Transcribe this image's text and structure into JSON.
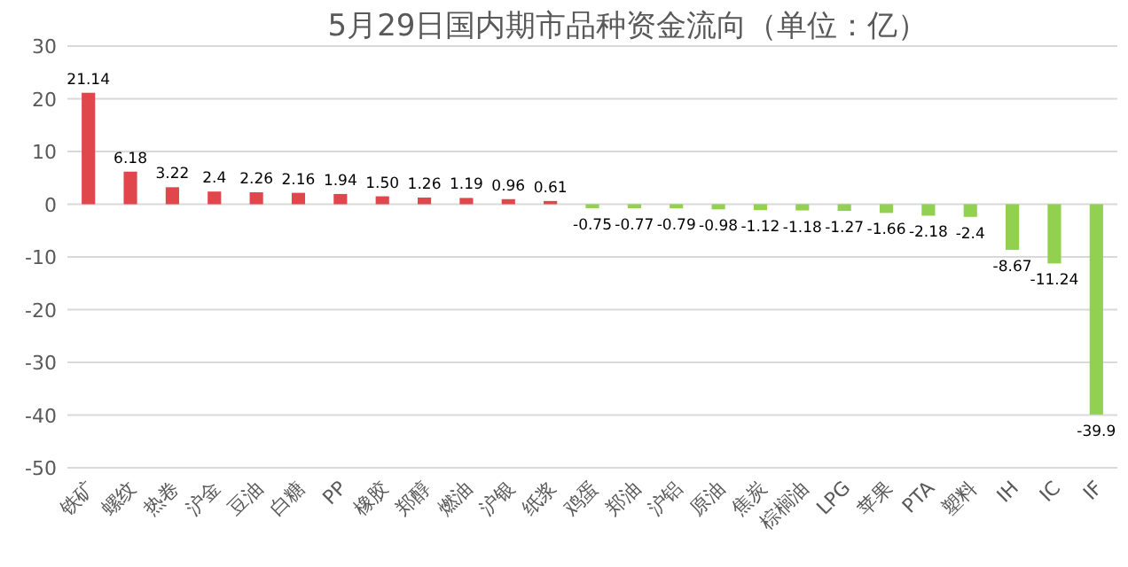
{
  "chart_data": {
    "type": "bar",
    "title": "5月29日国内期市品种资金流向（单位：亿）",
    "categories": [
      "铁矿",
      "螺纹",
      "热卷",
      "沪金",
      "豆油",
      "白糖",
      "PP",
      "橡胶",
      "郑醇",
      "燃油",
      "沪银",
      "纸浆",
      "鸡蛋",
      "郑油",
      "沪铝",
      "原油",
      "焦炭",
      "棕榈油",
      "LPG",
      "苹果",
      "PTA",
      "塑料",
      "IH",
      "IC",
      "IF"
    ],
    "values": [
      21.14,
      6.18,
      3.22,
      2.4,
      2.26,
      2.16,
      1.94,
      1.5,
      1.26,
      1.19,
      0.96,
      0.61,
      -0.75,
      -0.77,
      -0.79,
      -0.98,
      -1.12,
      -1.18,
      -1.27,
      -1.66,
      -2.18,
      -2.4,
      -8.67,
      -11.24,
      -39.9
    ],
    "value_labels": [
      "21.14",
      "6.18",
      "3.22",
      "2.4",
      "2.26",
      "2.16",
      "1.94",
      "1.50",
      "1.26",
      "1.19",
      "0.96",
      "0.61",
      "-0.75",
      "-0.77",
      "-0.79",
      "-0.98",
      "-1.12",
      "-1.18",
      "-1.27",
      "-1.66",
      "-2.18",
      "-2.4",
      "-8.67",
      "-11.24",
      "-39.9"
    ],
    "colors": [
      "#e0474c",
      "#e0474c",
      "#e0474c",
      "#e0474c",
      "#e0474c",
      "#e0474c",
      "#e0474c",
      "#e0474c",
      "#e0474c",
      "#e0474c",
      "#e0474c",
      "#e0474c",
      "#92d050",
      "#92d050",
      "#92d050",
      "#92d050",
      "#92d050",
      "#92d050",
      "#92d050",
      "#92d050",
      "#92d050",
      "#92d050",
      "#92d050",
      "#92d050",
      "#92d050"
    ],
    "ylim": [
      -50,
      30
    ],
    "yticks": [
      -50,
      -40,
      -30,
      -20,
      -10,
      0,
      10,
      20,
      30
    ],
    "grid": "y"
  }
}
